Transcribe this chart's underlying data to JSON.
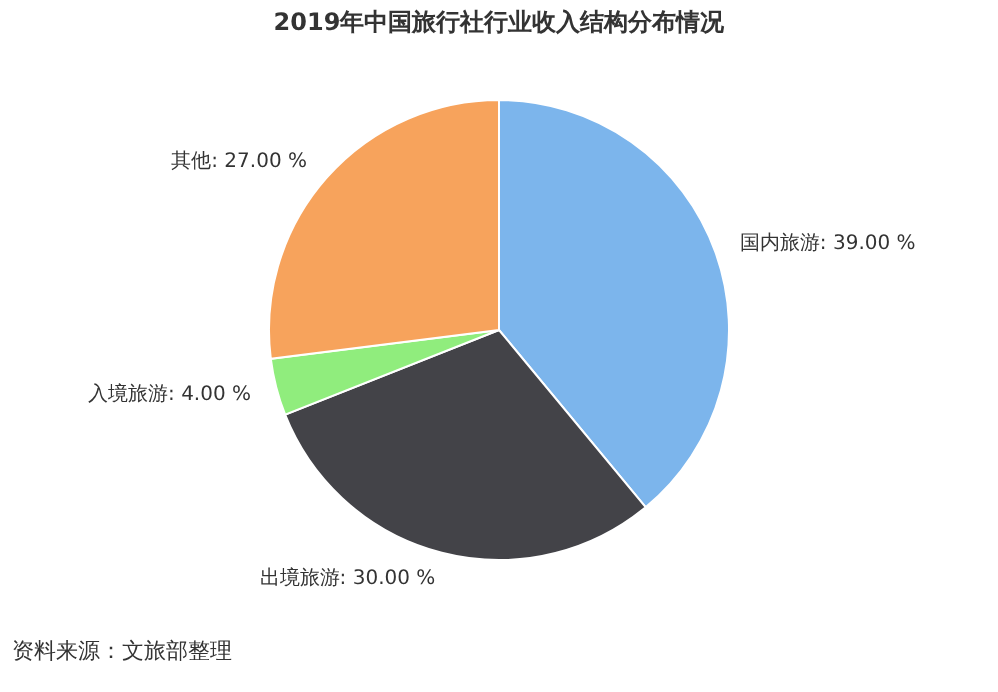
{
  "chart_data": {
    "type": "pie",
    "title": "2019年中国旅行社行业收入结构分布情况",
    "categories": [
      "国内旅游",
      "出境旅游",
      "入境旅游",
      "其他"
    ],
    "values": [
      39,
      30,
      4,
      27
    ],
    "colors": [
      "#7cb5ec",
      "#434348",
      "#90ed7d",
      "#f7a35c"
    ],
    "value_labels": [
      "39.00 %",
      "30.00 %",
      "4.00 %",
      "27.00 %"
    ],
    "annotations": [
      "资料来源：文旅部整理"
    ]
  }
}
